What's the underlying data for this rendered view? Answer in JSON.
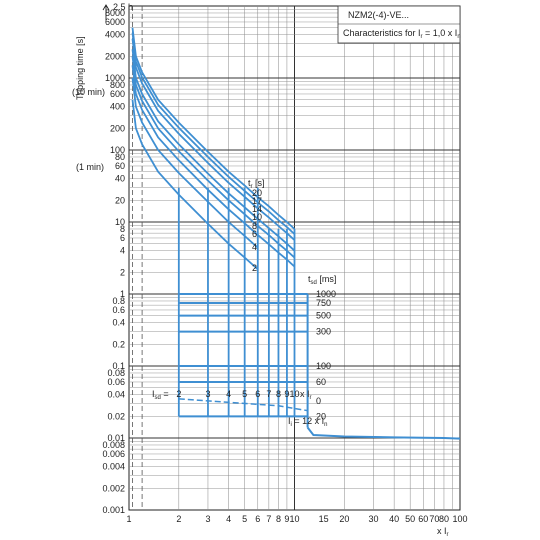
{
  "header": {
    "product": "NZM2(-4)-VE...",
    "characteristics_prefix": "Characteristics for I",
    "characteristics_sub": "r",
    "characteristics_mid": " = 1,0 x I",
    "characteristics_sub2": "n"
  },
  "chart_data": {
    "type": "line",
    "ylabel": "Tripping time [s]",
    "ylabel_2_5h": "2.5 h",
    "ylabel_10min": "(10 min)",
    "ylabel_1min": "(1 min)",
    "xlabel": "x I",
    "xlabel_sub": "r",
    "x_scale": "log",
    "y_scale": "log",
    "xlim": [
      1,
      100
    ],
    "ylim": [
      0.001,
      10000
    ],
    "x_ticks": [
      1,
      2,
      3,
      4,
      5,
      6,
      7,
      8,
      9,
      10,
      15,
      20,
      30,
      40,
      50,
      60,
      70,
      80,
      100
    ],
    "x_tick_labels": [
      "1",
      "2",
      "3",
      "4",
      "5",
      "6",
      "7",
      "8",
      "9",
      "10",
      "15",
      "20",
      "30",
      "40",
      "50",
      "60",
      "70",
      "80",
      "100"
    ],
    "y_ticks": [
      0.001,
      0.002,
      0.004,
      0.006,
      0.008,
      0.01,
      0.02,
      0.04,
      0.06,
      0.08,
      0.1,
      0.2,
      0.4,
      0.6,
      0.8,
      1,
      2,
      4,
      6,
      8,
      10,
      20,
      40,
      60,
      80,
      100,
      200,
      400,
      600,
      800,
      1000,
      2000,
      4000,
      6000,
      8000
    ],
    "y_tick_labels": [
      "0.001",
      "0.002",
      "0.004",
      "0.006",
      "0.008",
      "0.01",
      "0.02",
      "0.04",
      "0.06",
      "0.08",
      "0.1",
      "0.2",
      "0.4",
      "0.6",
      "0.8",
      "1",
      "2",
      "4",
      "6",
      "8",
      "10",
      "20",
      "40",
      "60",
      "80",
      "100",
      "200",
      "400",
      "600",
      "800",
      "1000",
      "2000",
      "4000",
      "6000",
      "8000"
    ],
    "grid": true,
    "tr_label_main": "t",
    "tr_label_sub": "r",
    "tr_label_unit": " [s]",
    "tr_values": [
      "20",
      "17",
      "14",
      "10",
      "8",
      "6",
      "4",
      "2"
    ],
    "tsd_label_main": "t",
    "tsd_label_sub": "sd",
    "tsd_label_unit": " [ms]",
    "tsd_values": [
      "1000",
      "750",
      "500",
      "300",
      "100",
      "60",
      "20",
      "0"
    ],
    "isd_label_main": "I",
    "isd_label_sub": "sd",
    "isd_label_eq": " =",
    "isd_values": [
      "2",
      "3",
      "4",
      "5",
      "6",
      "7",
      "8",
      "9",
      "10"
    ],
    "isd_xir": "x I",
    "isd_xir_sub": "r",
    "ii_label_main": "I",
    "ii_label_sub": "i",
    "ii_label_mid": " = 12 x I",
    "ii_label_sub2": "n",
    "series": [
      {
        "label": "20",
        "x": [
          1.05,
          1.1,
          1.2,
          1.5,
          2,
          3,
          4,
          5,
          6,
          7,
          8,
          9,
          10
        ],
        "y": [
          5000,
          2000,
          1200,
          500,
          240,
          94,
          50,
          32,
          22,
          16.5,
          12.5,
          10,
          8
        ]
      },
      {
        "label": "17",
        "x": [
          1.05,
          1.1,
          1.2,
          1.5,
          2,
          3,
          4,
          5,
          6,
          7,
          8,
          9,
          10
        ],
        "y": [
          4250,
          1700,
          1020,
          425,
          204,
          80,
          42.5,
          27,
          18.7,
          14,
          10.6,
          8.5,
          6.8
        ]
      },
      {
        "label": "14",
        "x": [
          1.05,
          1.1,
          1.2,
          1.5,
          2,
          3,
          4,
          5,
          6,
          7,
          8,
          9,
          10
        ],
        "y": [
          3500,
          1400,
          840,
          350,
          168,
          66,
          35,
          22.4,
          15.4,
          11.5,
          8.8,
          7,
          5.6
        ]
      },
      {
        "label": "10",
        "x": [
          1.05,
          1.1,
          1.2,
          1.5,
          2,
          3,
          4,
          5,
          6,
          7,
          8,
          9,
          10
        ],
        "y": [
          2500,
          1000,
          600,
          250,
          120,
          47,
          25,
          16,
          11,
          8.2,
          6.3,
          5,
          4
        ]
      },
      {
        "label": "8",
        "x": [
          1.05,
          1.1,
          1.2,
          1.5,
          2,
          3,
          4,
          5,
          6,
          7,
          8,
          9,
          10
        ],
        "y": [
          2000,
          800,
          480,
          200,
          96,
          37.6,
          20,
          12.8,
          8.8,
          6.6,
          5,
          4,
          3.2
        ]
      },
      {
        "label": "6",
        "x": [
          1.05,
          1.1,
          1.2,
          1.5,
          2,
          3,
          4,
          5,
          6,
          7,
          8,
          9,
          10
        ],
        "y": [
          1500,
          600,
          360,
          150,
          72,
          28,
          15,
          9.6,
          6.6,
          4.9,
          3.75,
          3,
          2.4
        ]
      },
      {
        "label": "4",
        "x": [
          1.05,
          1.1,
          1.2,
          1.5,
          2,
          3,
          4,
          5,
          6
        ],
        "y": [
          1000,
          400,
          240,
          100,
          48,
          19,
          10,
          6.4,
          4.4
        ]
      },
      {
        "label": "2",
        "x": [
          1.05,
          1.1,
          1.2,
          1.5,
          2,
          3,
          4,
          5,
          6
        ],
        "y": [
          500,
          200,
          120,
          50,
          24,
          9.4,
          5,
          3.2,
          2.2
        ]
      }
    ],
    "tsd_levels": [
      1.0,
      0.75,
      0.5,
      0.3,
      0.1,
      0.06,
      0.02
    ],
    "instantaneous": {
      "x": [
        12,
        13,
        20,
        40,
        60,
        80,
        100
      ],
      "y": [
        0.014,
        0.011,
        0.0105,
        0.0102,
        0.0101,
        0.01,
        0.0098
      ]
    }
  }
}
